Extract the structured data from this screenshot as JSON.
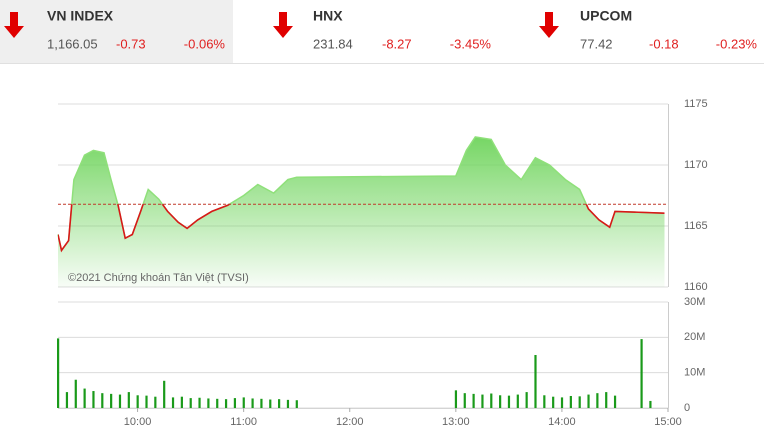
{
  "header": {
    "indices": [
      {
        "name": "VN INDEX",
        "value": "1,166.05",
        "change": "-0.73",
        "percent": "-0.06%"
      },
      {
        "name": "HNX",
        "value": "231.84",
        "change": "-8.27",
        "percent": "-3.45%"
      },
      {
        "name": "UPCOM",
        "value": "77.42",
        "change": "-0.18",
        "percent": "-0.23%"
      }
    ]
  },
  "chart_data": [
    {
      "type": "line",
      "annotation": "©2021 Chứng khoán Tân Việt (TVSI)",
      "x": [
        "9:15",
        "9:17",
        "9:21",
        "9:24",
        "9:30",
        "9:35",
        "9:41",
        "9:45",
        "9:49",
        "9:53",
        "9:57",
        "10:02",
        "10:06",
        "10:12",
        "10:17",
        "10:23",
        "10:28",
        "10:34",
        "10:42",
        "10:51",
        "11:00",
        "11:08",
        "11:17",
        "11:25",
        "11:30",
        "13:00",
        "13:06",
        "13:11",
        "13:20",
        "13:28",
        "13:37",
        "13:45",
        "13:53",
        "14:02",
        "14:10",
        "14:15",
        "14:21",
        "14:27",
        "14:30",
        "14:58"
      ],
      "values": [
        1164.3,
        1163.0,
        1163.8,
        1168.8,
        1170.8,
        1171.2,
        1171.0,
        1168.8,
        1166.7,
        1164.0,
        1164.3,
        1166.3,
        1168.0,
        1167.2,
        1166.2,
        1165.3,
        1164.8,
        1165.5,
        1166.2,
        1166.7,
        1167.5,
        1168.4,
        1167.7,
        1168.8,
        1169.0,
        1169.1,
        1171.2,
        1172.3,
        1172.1,
        1170.0,
        1168.8,
        1170.6,
        1170.0,
        1168.8,
        1168.0,
        1166.4,
        1165.5,
        1164.9,
        1166.2,
        1166.05
      ],
      "reference": 1166.78,
      "color": "#d81818",
      "area_color": "#6fd45c",
      "xlim": [
        "9:15",
        "15:00"
      ],
      "ylim": [
        1160,
        1175
      ],
      "yticks": [
        1160,
        1165,
        1170,
        1175
      ],
      "grid": true
    },
    {
      "type": "bar",
      "color": "#1a9a1a",
      "x": [
        "9:15",
        "9:20",
        "9:25",
        "9:30",
        "9:35",
        "9:40",
        "9:45",
        "9:50",
        "9:55",
        "10:00",
        "10:05",
        "10:10",
        "10:15",
        "10:20",
        "10:25",
        "10:30",
        "10:35",
        "10:40",
        "10:45",
        "10:50",
        "10:55",
        "11:00",
        "11:05",
        "11:10",
        "11:15",
        "11:20",
        "11:25",
        "11:30",
        "13:00",
        "13:05",
        "13:10",
        "13:15",
        "13:20",
        "13:25",
        "13:30",
        "13:35",
        "13:40",
        "13:45",
        "13:50",
        "13:55",
        "14:00",
        "14:05",
        "14:10",
        "14:15",
        "14:20",
        "14:25",
        "14:30",
        "14:45",
        "14:50"
      ],
      "values": [
        19700000,
        4500000,
        8000000,
        5500000,
        4800000,
        4200000,
        4000000,
        3800000,
        4500000,
        3600000,
        3500000,
        3200000,
        7700000,
        3000000,
        3200000,
        2800000,
        2900000,
        2700000,
        2600000,
        2500000,
        2800000,
        3000000,
        2700000,
        2600000,
        2400000,
        2500000,
        2300000,
        2200000,
        5000000,
        4200000,
        4000000,
        3800000,
        4100000,
        3600000,
        3500000,
        3800000,
        4500000,
        15000000,
        3600000,
        3200000,
        3000000,
        3400000,
        3300000,
        3800000,
        4200000,
        4500000,
        3500000,
        19500000,
        2000000
      ],
      "xlim": [
        "9:15",
        "15:00"
      ],
      "xticks": [
        "10:00",
        "11:00",
        "12:00",
        "13:00",
        "14:00",
        "15:00"
      ],
      "ylim": [
        0,
        30000000
      ],
      "yticks": [
        0,
        {
          "value": 10000000,
          "label": "10M"
        },
        {
          "value": 20000000,
          "label": "20M"
        },
        {
          "value": 30000000,
          "label": "30M"
        }
      ],
      "grid": true
    }
  ]
}
